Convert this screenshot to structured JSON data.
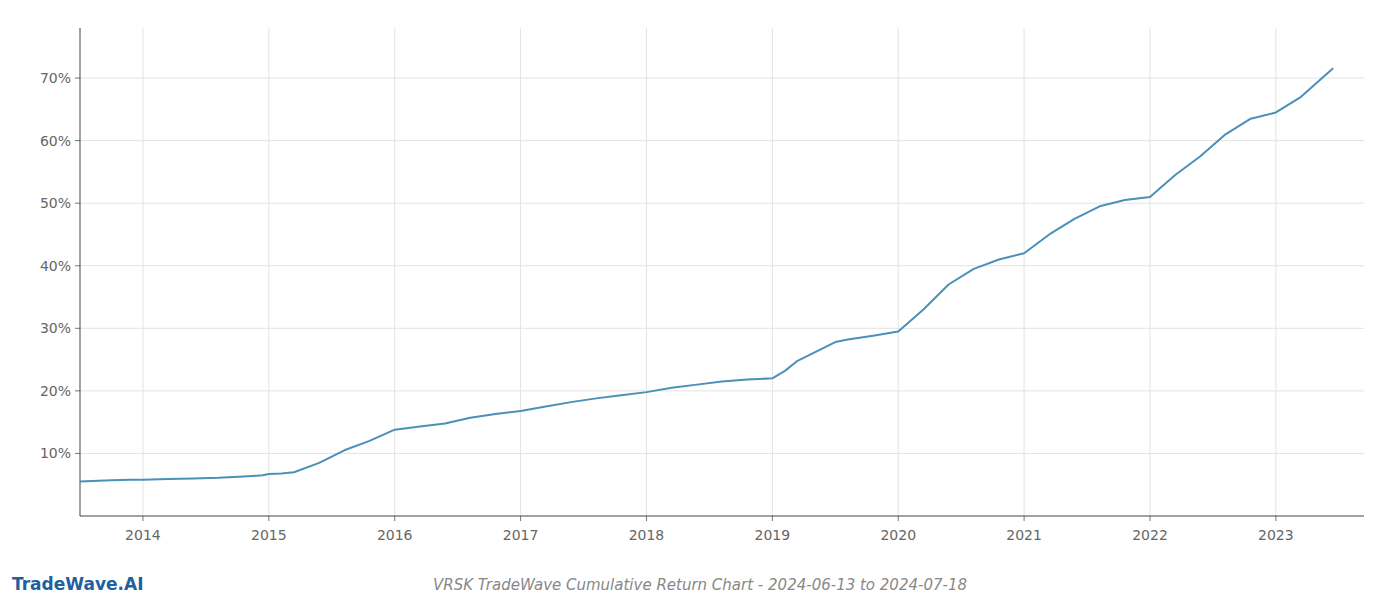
{
  "chart_data": {
    "type": "line",
    "title": "VRSK TradeWave Cumulative Return Chart - 2024-06-13 to 2024-07-18",
    "annotations": [
      "TradeWave.AI"
    ],
    "color": "#4a90b8",
    "grid": true,
    "x": [
      2013.5,
      2013.6,
      2013.75,
      2013.9,
      2014.0,
      2014.2,
      2014.4,
      2014.6,
      2014.8,
      2014.95,
      2015.0,
      2015.1,
      2015.2,
      2015.4,
      2015.5,
      2015.6,
      2015.8,
      2016.0,
      2016.2,
      2016.4,
      2016.6,
      2016.8,
      2017.0,
      2017.2,
      2017.4,
      2017.6,
      2017.8,
      2018.0,
      2018.2,
      2018.4,
      2018.6,
      2018.8,
      2019.0,
      2019.1,
      2019.2,
      2019.3,
      2019.4,
      2019.5,
      2019.6,
      2019.8,
      2020.0,
      2020.2,
      2020.4,
      2020.6,
      2020.8,
      2021.0,
      2021.2,
      2021.4,
      2021.6,
      2021.8,
      2022.0,
      2022.2,
      2022.4,
      2022.6,
      2022.8,
      2023.0,
      2023.2,
      2023.45
    ],
    "values": [
      0.055,
      0.056,
      0.057,
      0.058,
      0.058,
      0.059,
      0.06,
      0.061,
      0.063,
      0.065,
      0.067,
      0.068,
      0.07,
      0.085,
      0.095,
      0.105,
      0.12,
      0.138,
      0.143,
      0.148,
      0.157,
      0.163,
      0.168,
      0.175,
      0.182,
      0.188,
      0.193,
      0.198,
      0.205,
      0.21,
      0.215,
      0.218,
      0.22,
      0.232,
      0.248,
      0.258,
      0.268,
      0.278,
      0.282,
      0.288,
      0.295,
      0.33,
      0.37,
      0.395,
      0.41,
      0.42,
      0.45,
      0.475,
      0.495,
      0.505,
      0.51,
      0.545,
      0.575,
      0.61,
      0.635,
      0.645,
      0.67,
      0.715
    ],
    "xlim": [
      2013.5,
      2023.7
    ],
    "xticks": [
      2014,
      2015,
      2016,
      2017,
      2018,
      2019,
      2020,
      2021,
      2022,
      2023
    ],
    "ylim": [
      0.0,
      0.78
    ],
    "yticks": [
      {
        "value": 0.1,
        "label": "10%"
      },
      {
        "value": 0.2,
        "label": "20%"
      },
      {
        "value": 0.3,
        "label": "30%"
      },
      {
        "value": 0.4,
        "label": "40%"
      },
      {
        "value": 0.5,
        "label": "50%"
      },
      {
        "value": 0.6,
        "label": "60%"
      },
      {
        "value": 0.7,
        "label": "70%"
      }
    ]
  }
}
